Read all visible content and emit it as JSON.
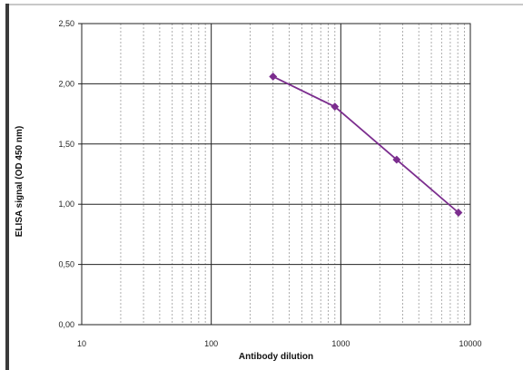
{
  "chart_data": {
    "type": "line",
    "xscale": "log",
    "xlabel": "Antibody dilution",
    "ylabel": "ELISA signal (OD 450 nm)",
    "xlim": [
      10,
      10000
    ],
    "ylim": [
      0.0,
      2.5
    ],
    "x_ticks": [
      "10",
      "100",
      "1000",
      "10000"
    ],
    "y_ticks": [
      "0,00",
      "0,50",
      "1,00",
      "1,50",
      "2,00",
      "2,50"
    ],
    "grid": true,
    "color": "#7b2d8e",
    "series": [
      {
        "x": [
          300,
          900,
          2700,
          8100
        ],
        "y": [
          2.06,
          1.81,
          1.37,
          0.93
        ]
      }
    ]
  }
}
